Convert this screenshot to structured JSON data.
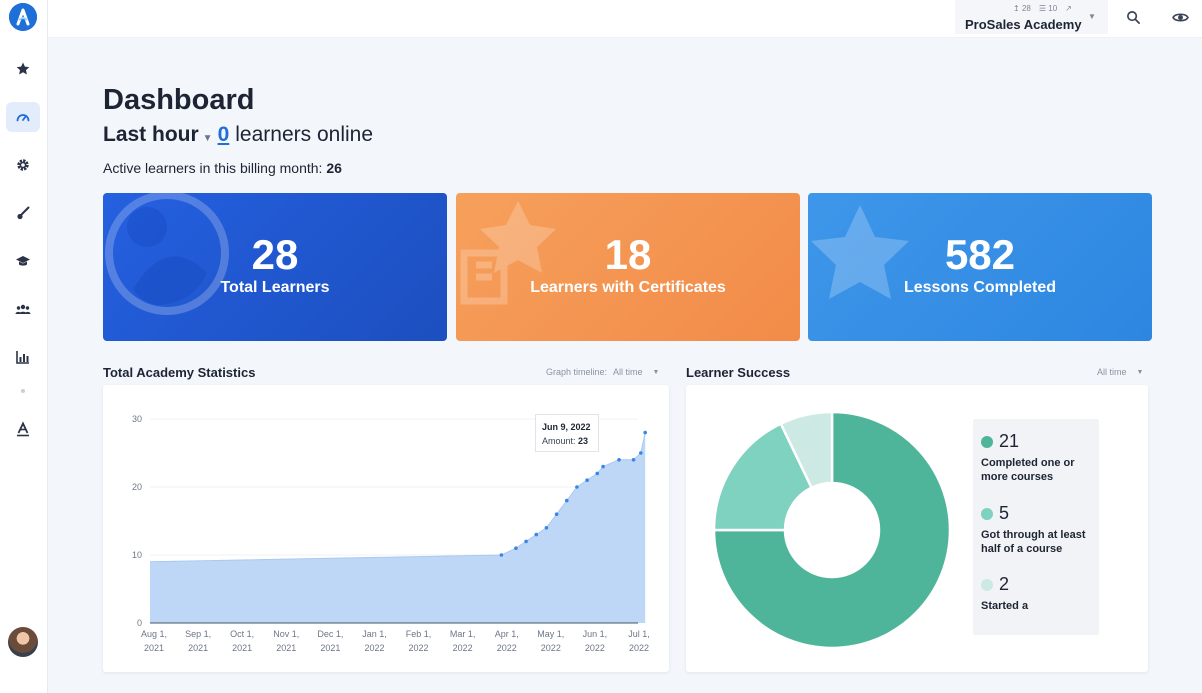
{
  "sidebar": {
    "items": [
      {
        "name": "favorites",
        "icon": "star-icon"
      },
      {
        "name": "dashboard",
        "icon": "gauge-icon",
        "active": true
      },
      {
        "name": "settings",
        "icon": "gear-icon"
      },
      {
        "name": "design",
        "icon": "brush-icon"
      },
      {
        "name": "courses",
        "icon": "graduation-cap-icon"
      },
      {
        "name": "users",
        "icon": "users-icon"
      },
      {
        "name": "reports",
        "icon": "bar-chart-icon"
      },
      {
        "name": "brand",
        "icon": "text-a-icon"
      }
    ]
  },
  "topbar": {
    "learners_stat": "28",
    "courses_stat": "10",
    "academy_name": "ProSales Academy"
  },
  "header": {
    "title": "Dashboard",
    "period": "Last hour",
    "online_count": "0",
    "online_suffix": "learners online",
    "billing_prefix": "Active learners in this billing month:",
    "billing_count": "26"
  },
  "cards": [
    {
      "value": "28",
      "label": "Total Learners",
      "color": "#2560e0"
    },
    {
      "value": "18",
      "label": "Learners with Certificates",
      "color": "#f6a05c"
    },
    {
      "value": "582",
      "label": "Lessons Completed",
      "color": "#3f97ea"
    }
  ],
  "stats_panel": {
    "title": "Total Academy Statistics",
    "filter_label": "Graph timeline:",
    "filter_value": "All time",
    "tooltip_date": "Jun 9, 2022",
    "tooltip_amount_label": "Amount:",
    "tooltip_amount": "23"
  },
  "success_panel": {
    "title": "Learner Success",
    "filter_value": "All time"
  },
  "chart_data": [
    {
      "type": "area",
      "title": "Total Academy Statistics",
      "ylim": [
        0,
        30
      ],
      "yticks": [
        0,
        10,
        20,
        30
      ],
      "xticks": [
        {
          "l1": "Aug 1,",
          "l2": "2021"
        },
        {
          "l1": "Sep 1,",
          "l2": "2021"
        },
        {
          "l1": "Oct 1,",
          "l2": "2021"
        },
        {
          "l1": "Nov 1,",
          "l2": "2021"
        },
        {
          "l1": "Dec 1,",
          "l2": "2021"
        },
        {
          "l1": "Jan 1,",
          "l2": "2022"
        },
        {
          "l1": "Feb 1,",
          "l2": "2022"
        },
        {
          "l1": "Mar 1,",
          "l2": "2022"
        },
        {
          "l1": "Apr 1,",
          "l2": "2022"
        },
        {
          "l1": "May 1,",
          "l2": "2022"
        },
        {
          "l1": "Jun 1,",
          "l2": "2022"
        },
        {
          "l1": "Jul 1,",
          "l2": "2022"
        }
      ],
      "x": [
        "2021-08-01",
        "2022-03-31",
        "2022-04-10",
        "2022-04-17",
        "2022-04-24",
        "2022-05-01",
        "2022-05-08",
        "2022-05-15",
        "2022-05-22",
        "2022-05-29",
        "2022-06-05",
        "2022-06-09",
        "2022-06-20",
        "2022-06-30",
        "2022-07-05",
        "2022-07-08"
      ],
      "series": [
        {
          "values": [
            9,
            10,
            11,
            12,
            13,
            14,
            16,
            18,
            20,
            21,
            22,
            23,
            24,
            24,
            25,
            28
          ]
        }
      ],
      "grid": true,
      "colors": {
        "fill": "#bfd7f6",
        "line": "#3a86e6"
      }
    },
    {
      "type": "pie",
      "title": "Learner Success",
      "slices": [
        {
          "label": "Completed one or more courses",
          "value": 21,
          "color": "#4fb59a"
        },
        {
          "label": "Got through at least half of a course",
          "value": 5,
          "color": "#7fd1c0"
        },
        {
          "label": "Started a",
          "value": 2,
          "color": "#cde9e3"
        }
      ],
      "donut": true
    }
  ]
}
